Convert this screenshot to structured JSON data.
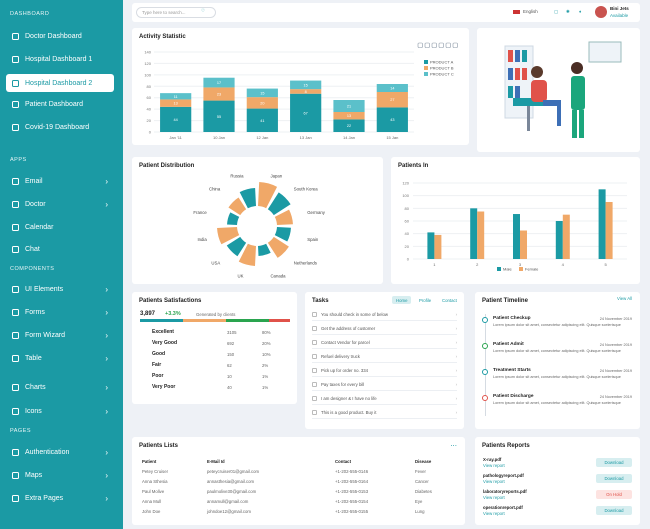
{
  "sidebar": {
    "dashboard_label": "DASHBOARD",
    "apps_label": "APPS",
    "components_label": "COMPONENTS",
    "pages_label": "PAGES",
    "items": [
      "Doctor Dashboard",
      "Hospital Dashboard 1",
      "Hospital Dashboard 2",
      "Patient Dashboard",
      "Covid-19 Dashboard",
      "Email",
      "Doctor",
      "Calendar",
      "Chat",
      "UI Elements",
      "Forms",
      "Form Wizard",
      "Table",
      "Charts",
      "Icons",
      "Authentication",
      "Maps",
      "Extra Pages"
    ]
  },
  "topbar": {
    "search_placeholder": "Type here to search...",
    "language": "English",
    "user_name": "Bini Jets",
    "user_status": "Available"
  },
  "activity": {
    "title": "Activity Statistic",
    "legend": [
      "PRODUCT A",
      "PRODUCT B",
      "PRODUCT C"
    ],
    "colors": [
      "#1b9aa4",
      "#f0a868",
      "#5bc0ca"
    ]
  },
  "patient_dist": {
    "title": "Patient Distribution",
    "labels": [
      "Japan",
      "South Korea",
      "Germany",
      "Spain",
      "Netherlands",
      "Canada",
      "UK",
      "USA",
      "India",
      "France",
      "China",
      "Russia"
    ]
  },
  "patients_in": {
    "title": "Patients In",
    "legend": [
      "Male",
      "Female"
    ]
  },
  "satisfaction": {
    "title": "Patients Satisfactions",
    "total": "3,897",
    "change": "+3.3%",
    "note": "Generated by clients",
    "rows": [
      {
        "label": "Excellent",
        "count": "3105",
        "pct": "80%"
      },
      {
        "label": "Very Good",
        "count": "692",
        "pct": "20%"
      },
      {
        "label": "Good",
        "count": "150",
        "pct": "10%"
      },
      {
        "label": "Fair",
        "count": "62",
        "pct": "2%"
      },
      {
        "label": "Poor",
        "count": "10",
        "pct": "1%"
      },
      {
        "label": "Very Poor",
        "count": "40",
        "pct": "1%"
      }
    ]
  },
  "tasks": {
    "title": "Tasks",
    "tabs": [
      "Home",
      "Profile",
      "Contact"
    ],
    "items": [
      "You should check in some of below",
      "Get the address of customer",
      "Contact Vendor for parcel",
      "Refuel delivery truck",
      "Pick up for order no. 334",
      "Pay taxes for every bill",
      "I am designer & I have no life",
      "This is a good product. Buy it"
    ]
  },
  "timeline": {
    "title": "Patient Timeline",
    "view_all": "View All",
    "items": [
      {
        "title": "Patient Checkup",
        "date": "24 November 2019",
        "text": "Lorem ipsum dolor sit amet, consectetur adipiscing elit. Quisque scelerisque"
      },
      {
        "title": "Patient Admit",
        "date": "24 November 2019",
        "text": "Lorem ipsum dolor sit amet, consectetur adipiscing elit. Quisque scelerisque"
      },
      {
        "title": "Treatment Starts",
        "date": "24 November 2019",
        "text": "Lorem ipsum dolor sit amet, consectetur adipiscing elit. Quisque scelerisque"
      },
      {
        "title": "Patient Discharge",
        "date": "24 November 2019",
        "text": "Lorem ipsum dolor sit amet, consectetur adipiscing elit. Quisque scelerisque"
      }
    ]
  },
  "patients_list": {
    "title": "Patients Lists",
    "more": "...",
    "headers": [
      "Patient",
      "E-Mail Id",
      "Contact",
      "Disease"
    ],
    "rows": [
      [
        "Petey Cruiser",
        "peteycruiser01@gmail.com",
        "+1-202-555-0146",
        "Fever"
      ],
      [
        "Anna Sthesia",
        "annasthesia@gmail.com",
        "+1-202-555-0164",
        "Cancer"
      ],
      [
        "Paul Molive",
        "paulmolive30@gmail.com",
        "+1-202-555-0153",
        "Diabetes"
      ],
      [
        "Anna Mull",
        "annamull@gmail.com",
        "+1-202-555-0154",
        "Eye"
      ],
      [
        "John Doe",
        "johndoe12@gmail.com",
        "+1-202-555-0155",
        "Lung"
      ]
    ]
  },
  "reports": {
    "title": "Patients Reports",
    "view_label": "View report",
    "items": [
      {
        "file": "X-ray.pdf",
        "action": "Download"
      },
      {
        "file": "pathologyreport.pdf",
        "action": "Download"
      },
      {
        "file": "laboratoryreports.pdf",
        "action": "On Hold"
      },
      {
        "file": "operationreport.pdf",
        "action": "Download"
      }
    ]
  },
  "chart_data": [
    {
      "type": "bar",
      "title": "Activity Statistic",
      "stacked": true,
      "categories": [
        "Jan '11",
        "10 Jan",
        "12 Jan",
        "13 Jan",
        "14 Jan",
        "15 Jan"
      ],
      "series": [
        {
          "name": "PRODUCT A",
          "values": [
            44,
            55,
            41,
            67,
            22,
            43
          ]
        },
        {
          "name": "PRODUCT B",
          "values": [
            13,
            23,
            20,
            8,
            13,
            27
          ]
        },
        {
          "name": "PRODUCT C",
          "values": [
            11,
            17,
            15,
            15,
            21,
            14
          ]
        }
      ],
      "ylim": [
        0,
        140
      ],
      "yticks": [
        0,
        20,
        40,
        60,
        80,
        100,
        120,
        140
      ],
      "legend": "right"
    },
    {
      "type": "bar",
      "title": "Patients In",
      "categories": [
        "1",
        "2",
        "3",
        "4",
        "5"
      ],
      "series": [
        {
          "name": "Male",
          "values": [
            42,
            80,
            71,
            60,
            110
          ]
        },
        {
          "name": "Female",
          "values": [
            38,
            75,
            45,
            70,
            90
          ]
        }
      ],
      "ylim": [
        0,
        120
      ],
      "yticks": [
        0,
        20,
        40,
        60,
        80,
        100,
        120
      ],
      "legend": "bottom"
    }
  ]
}
